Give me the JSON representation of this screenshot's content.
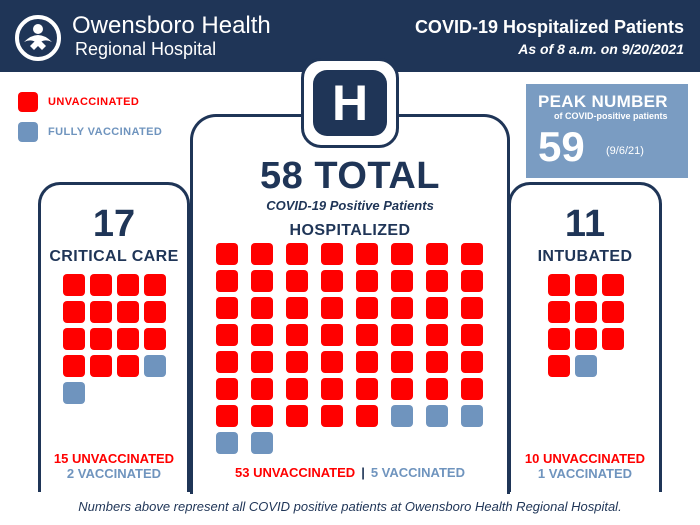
{
  "header": {
    "org_line1": "Owensboro Health",
    "org_line2": "Regional Hospital",
    "title": "COVID-19 Hospitalized Patients",
    "subtitle": "As of 8 a.m. on 9/20/2021",
    "logo_icon": "owensboro-health-logo-icon"
  },
  "legend": {
    "unvaccinated": "UNVACCINATED",
    "vaccinated": "FULLY VACCINATED"
  },
  "colors": {
    "navy": "#1f3557",
    "unvaccinated": "#ff0000",
    "vaccinated": "#6f94be",
    "peak_box": "#7a9cc2"
  },
  "peak": {
    "title": "PEAK NUMBER",
    "subtitle": "of COVID-positive patients",
    "value": "59",
    "date": "(9/6/21)"
  },
  "critical_care": {
    "total": "17",
    "label": "CRITICAL CARE",
    "unvaccinated_count": 15,
    "vaccinated_count": 2,
    "unvaccinated_text": "15 UNVACCINATED",
    "vaccinated_text": "2 VACCINATED"
  },
  "hospitalized": {
    "badge": "H",
    "total_text": "58 TOTAL",
    "total_sub": "COVID-19 Positive Patients",
    "label": "HOSPITALIZED",
    "unvaccinated_count": 53,
    "vaccinated_count": 5,
    "unvaccinated_text": "53 UNVACCINATED",
    "separator": "|",
    "vaccinated_text": "5 VACCINATED"
  },
  "intubated": {
    "total": "11",
    "label": "INTUBATED",
    "unvaccinated_count": 10,
    "vaccinated_count": 1,
    "unvaccinated_text": "10 UNVACCINATED",
    "vaccinated_text": "1 VACCINATED"
  },
  "footnote": "Numbers above represent all COVID positive patients at Owensboro Health Regional Hospital."
}
